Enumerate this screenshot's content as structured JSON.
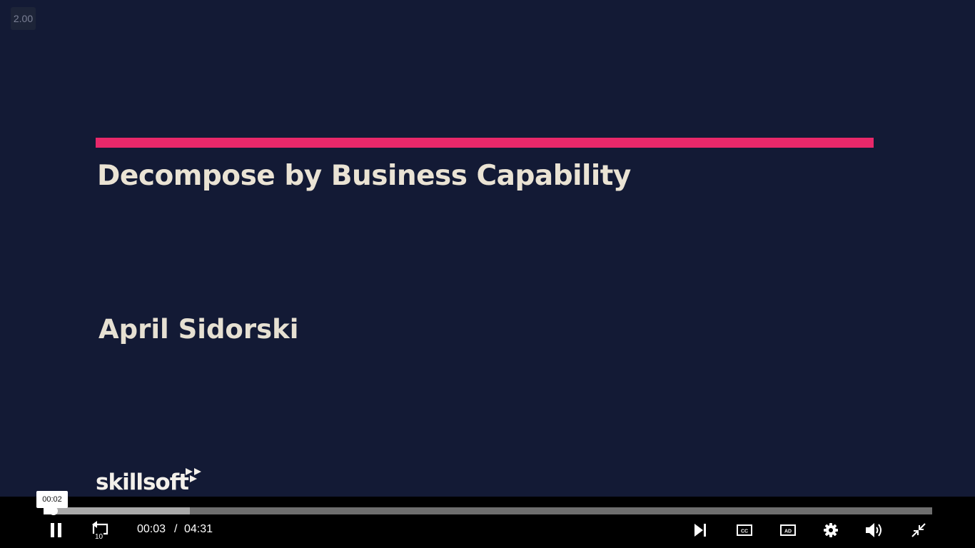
{
  "slide": {
    "speed_badge": "2.00",
    "title": "Decompose by Business Capability",
    "presenter": "April Sidorski",
    "logo_text": "skillsoft",
    "accent_color": "#e8286a",
    "background_color": "#131a35"
  },
  "player": {
    "hover_time": "00:02",
    "current_time": "00:03",
    "separator": "/",
    "duration": "04:31",
    "played_fraction": 0.011,
    "buffered_fraction": 0.165,
    "rewind_label": "10",
    "cc_label": "CC",
    "ad_label": "AD",
    "icons": {
      "play_pause": "pause-icon",
      "rewind": "rewind-10-icon",
      "next": "skip-next-icon",
      "captions": "closed-captions-icon",
      "audio_description": "audio-description-icon",
      "settings": "gear-icon",
      "volume": "volume-icon",
      "fullscreen": "exit-fullscreen-icon"
    }
  }
}
